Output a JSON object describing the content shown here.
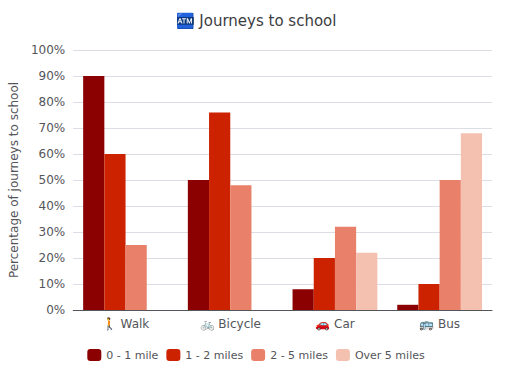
{
  "chart_data": {
    "type": "bar",
    "title": "🏧 Journeys to school",
    "ylabel": "Percentage of journeys to school",
    "categories": [
      "🚶 Walk",
      "🚲 Bicycle",
      "🚗 Car",
      "🚌 Bus"
    ],
    "series": [
      {
        "name": "0 - 1 mile",
        "color": "#8B0000",
        "values": [
          90,
          50,
          8,
          2
        ]
      },
      {
        "name": "1 - 2 miles",
        "color": "#CC2200",
        "values": [
          60,
          76,
          20,
          10
        ]
      },
      {
        "name": "2 - 5 miles",
        "color": "#E8806A",
        "values": [
          25,
          48,
          32,
          50
        ]
      },
      {
        "name": "Over 5 miles",
        "color": "#F4C0B0",
        "values": [
          0,
          0,
          22,
          68
        ]
      }
    ],
    "ylim": [
      0,
      100
    ],
    "yticks": [
      {
        "value": 0,
        "label": "0%"
      },
      {
        "value": 10,
        "label": "10%"
      },
      {
        "value": 20,
        "label": "20%"
      },
      {
        "value": 30,
        "label": "30%"
      },
      {
        "value": 40,
        "label": "40%"
      },
      {
        "value": 50,
        "label": "50%"
      },
      {
        "value": 60,
        "label": "60%"
      },
      {
        "value": 70,
        "label": "70%"
      },
      {
        "value": 80,
        "label": "80%"
      },
      {
        "value": 90,
        "label": "90%"
      },
      {
        "value": 100,
        "label": "100%"
      }
    ],
    "grid": true,
    "legend": "bottom"
  }
}
